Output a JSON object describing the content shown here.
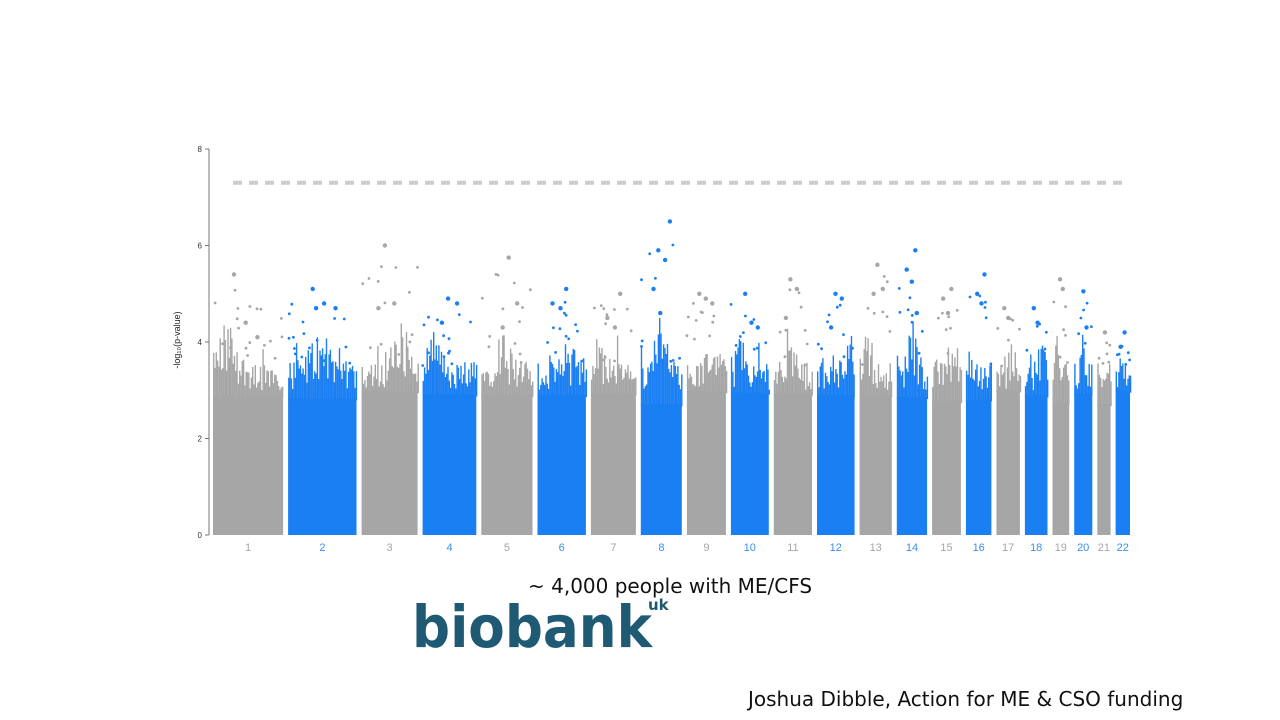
{
  "slide": {
    "caption": "~ 4,000 people with ME/CFS",
    "logo_text": "biobank",
    "logo_suffix": "uk",
    "credit": "Joshua Dibble, Action for ME & CSO funding"
  },
  "colors": {
    "grey": "#a6a6a6",
    "blue": "#1a7ff2",
    "threshold": "#cccccc",
    "logo": "#1e5a73",
    "axis": "#777777",
    "tick_grey": "#a6a6a6",
    "tick_blue": "#3a8ff0"
  },
  "chart_data": {
    "type": "scatter",
    "subtype": "manhattan",
    "ylabel": "-log₁₀(p-value)",
    "ylim": [
      0,
      8
    ],
    "yticks": [
      "0",
      "2",
      "4",
      "6",
      "8"
    ],
    "significance_threshold": 7.3,
    "chromosomes": [
      {
        "label": "1",
        "color": "grey",
        "rel_len": 248,
        "max": 5.4,
        "top_hits": [
          5.4,
          4.4,
          4.1
        ]
      },
      {
        "label": "2",
        "color": "blue",
        "rel_len": 242,
        "max": 5.1,
        "top_hits": [
          5.1,
          4.8,
          4.7,
          4.7
        ]
      },
      {
        "label": "3",
        "color": "grey",
        "rel_len": 198,
        "max": 6.0,
        "top_hits": [
          6.0,
          4.8,
          4.7
        ]
      },
      {
        "label": "4",
        "color": "blue",
        "rel_len": 190,
        "max": 4.9,
        "top_hits": [
          4.9,
          4.8,
          4.4
        ]
      },
      {
        "label": "5",
        "color": "grey",
        "rel_len": 181,
        "max": 5.75,
        "top_hits": [
          5.75,
          4.8,
          4.3
        ]
      },
      {
        "label": "6",
        "color": "blue",
        "rel_len": 171,
        "max": 5.1,
        "top_hits": [
          5.1,
          4.8,
          4.7
        ]
      },
      {
        "label": "7",
        "color": "grey",
        "rel_len": 159,
        "max": 5.0,
        "top_hits": [
          5.0,
          4.5,
          4.3
        ]
      },
      {
        "label": "8",
        "color": "blue",
        "rel_len": 145,
        "max": 6.5,
        "top_hits": [
          6.5,
          5.9,
          5.7,
          5.1,
          4.6
        ]
      },
      {
        "label": "9",
        "color": "grey",
        "rel_len": 138,
        "max": 5.0,
        "top_hits": [
          5.0,
          4.9,
          4.8
        ]
      },
      {
        "label": "10",
        "color": "blue",
        "rel_len": 134,
        "max": 5.0,
        "top_hits": [
          5.0,
          4.4,
          4.3
        ]
      },
      {
        "label": "11",
        "color": "grey",
        "rel_len": 135,
        "max": 5.3,
        "top_hits": [
          5.3,
          5.1,
          4.5
        ]
      },
      {
        "label": "12",
        "color": "blue",
        "rel_len": 133,
        "max": 5.0,
        "top_hits": [
          5.0,
          4.9,
          4.3
        ]
      },
      {
        "label": "13",
        "color": "grey",
        "rel_len": 114,
        "max": 5.6,
        "top_hits": [
          5.6,
          5.1,
          5.0
        ]
      },
      {
        "label": "14",
        "color": "blue",
        "rel_len": 107,
        "max": 5.9,
        "top_hits": [
          5.9,
          5.5,
          5.25,
          4.6
        ]
      },
      {
        "label": "15",
        "color": "grey",
        "rel_len": 102,
        "max": 5.1,
        "top_hits": [
          5.1,
          4.9,
          4.6
        ]
      },
      {
        "label": "16",
        "color": "blue",
        "rel_len": 90,
        "max": 5.4,
        "top_hits": [
          5.4,
          5.0,
          4.8
        ]
      },
      {
        "label": "17",
        "color": "grey",
        "rel_len": 83,
        "max": 4.7,
        "top_hits": [
          4.7,
          4.5
        ]
      },
      {
        "label": "18",
        "color": "blue",
        "rel_len": 80,
        "max": 4.7,
        "top_hits": [
          4.7,
          4.4
        ]
      },
      {
        "label": "19",
        "color": "grey",
        "rel_len": 59,
        "max": 5.3,
        "top_hits": [
          5.3,
          5.1
        ]
      },
      {
        "label": "20",
        "color": "blue",
        "rel_len": 64,
        "max": 5.05,
        "top_hits": [
          5.05,
          4.3
        ]
      },
      {
        "label": "21",
        "color": "grey",
        "rel_len": 47,
        "max": 4.2,
        "top_hits": [
          4.2
        ]
      },
      {
        "label": "22",
        "color": "blue",
        "rel_len": 51,
        "max": 4.2,
        "top_hits": [
          4.2,
          3.9
        ]
      }
    ]
  }
}
